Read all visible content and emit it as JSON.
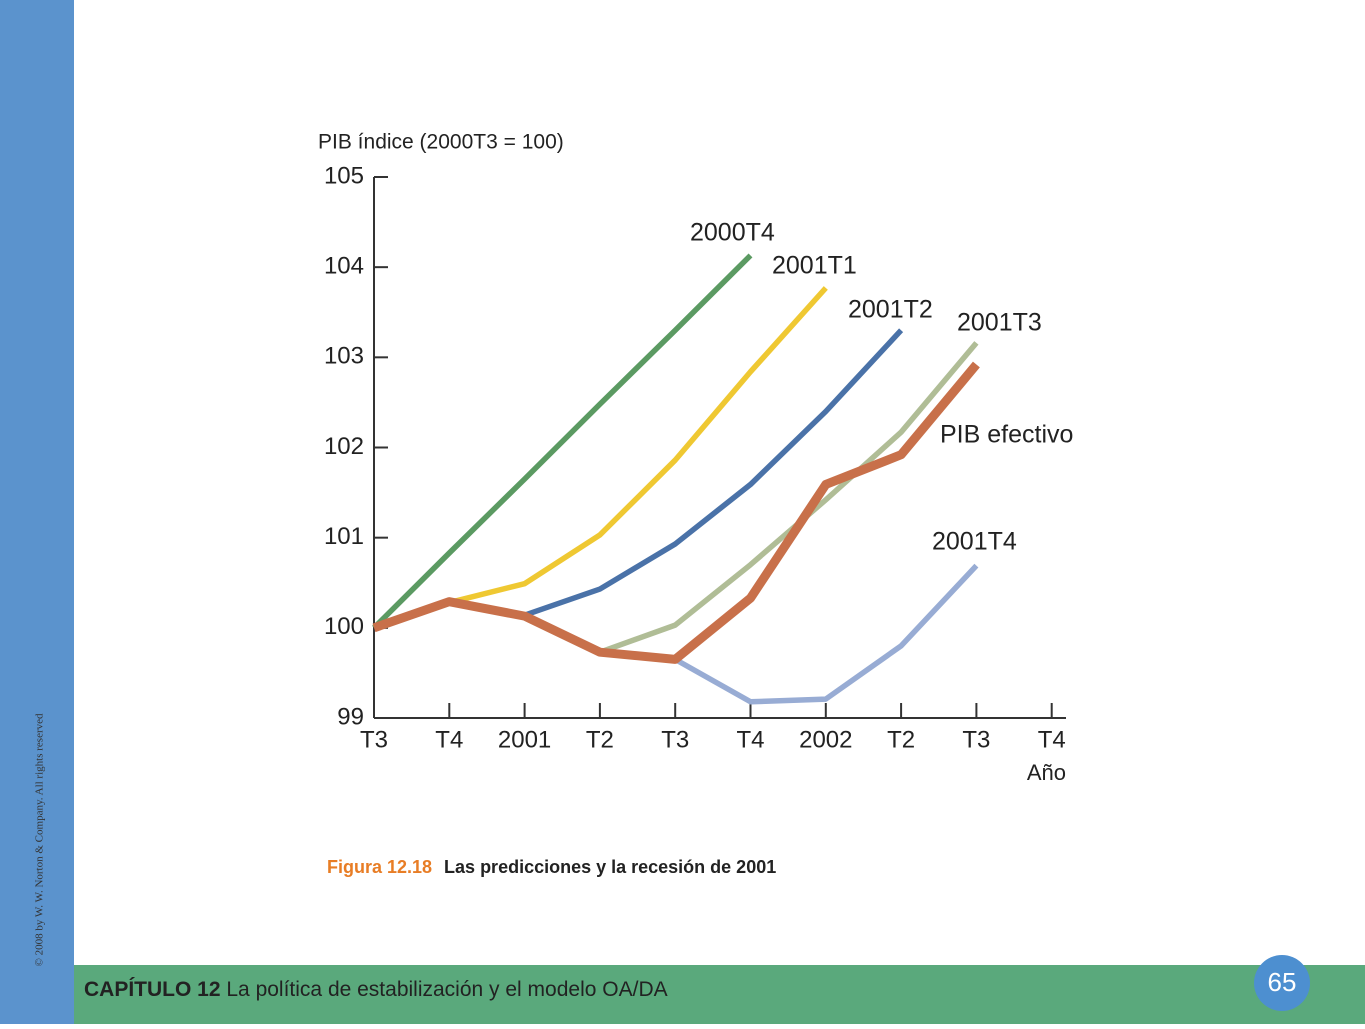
{
  "chart_data": {
    "type": "line",
    "ylabel": "PIB índice (2000T3 = 100)",
    "xlabel": "Año",
    "categories": [
      "T3",
      "T4",
      "2001",
      "T2",
      "T3",
      "T4",
      "2002",
      "T2",
      "T3",
      "T4"
    ],
    "ylim": [
      99,
      105
    ],
    "yticks": [
      99,
      100,
      101,
      102,
      103,
      104,
      105
    ],
    "series": [
      {
        "name": "2000T4",
        "color": "#5b9a62",
        "values": [
          100,
          100.83,
          101.65,
          102.48,
          103.3,
          104.13,
          null,
          null,
          null,
          null
        ]
      },
      {
        "name": "2001T1",
        "color": "#efc832",
        "values": [
          null,
          100.28,
          100.49,
          101.03,
          101.86,
          102.84,
          103.77,
          null,
          null,
          null
        ]
      },
      {
        "name": "2001T2",
        "color": "#4a72a8",
        "values": [
          null,
          null,
          100.14,
          100.43,
          100.93,
          101.59,
          102.4,
          103.3,
          null,
          null
        ]
      },
      {
        "name": "2001T3",
        "color": "#b0bd96",
        "values": [
          null,
          null,
          null,
          99.73,
          100.03,
          100.7,
          101.42,
          102.17,
          103.16,
          null
        ]
      },
      {
        "name": "2001T4",
        "color": "#98acd4",
        "values": [
          null,
          null,
          null,
          null,
          99.65,
          99.18,
          99.21,
          99.8,
          100.69,
          null
        ]
      },
      {
        "name": "PIB efectivo",
        "color": "#c8704a",
        "values": [
          100,
          100.29,
          100.13,
          99.73,
          99.65,
          100.33,
          101.59,
          101.92,
          102.92,
          null
        ]
      }
    ]
  },
  "caption": {
    "number": "Figura 12.18",
    "text": "Las predicciones y la recesión de 2001"
  },
  "footer": {
    "chapter": "CAPÍTULO 12",
    "title": "La política de estabilización y el modelo OA/DA",
    "page": "65"
  },
  "copyright": "© 2008 by W. W. Norton & Company. All rights reserved"
}
